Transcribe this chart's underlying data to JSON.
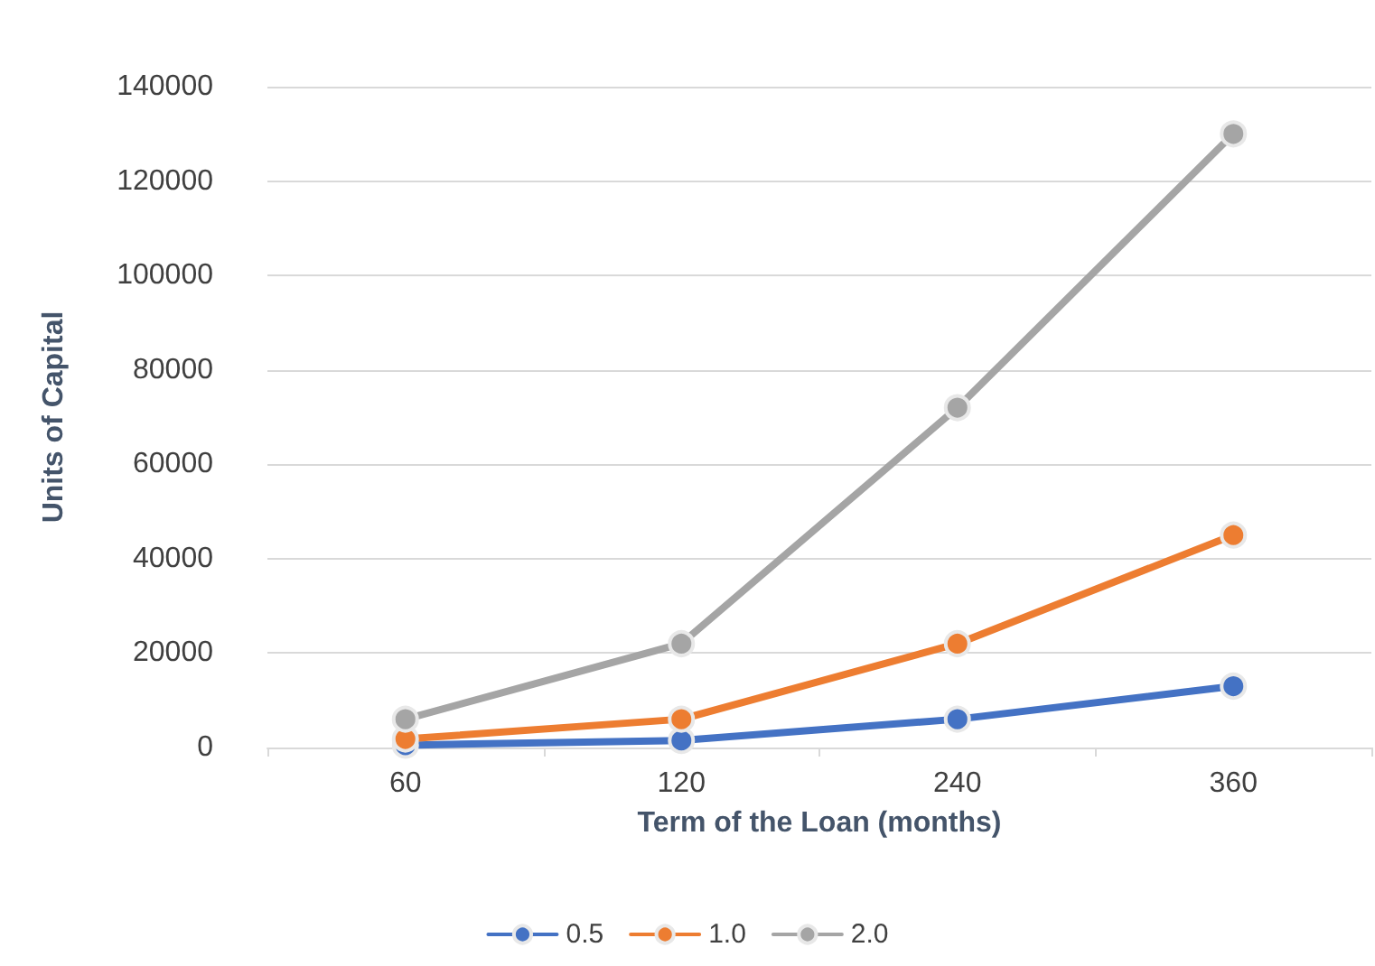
{
  "chart_data": {
    "type": "line",
    "xlabel": "Term of the Loan (months)",
    "ylabel": "Units of Capital",
    "categories": [
      "60",
      "120",
      "240",
      "360"
    ],
    "series": [
      {
        "name": "0.5",
        "color": "#4472c4",
        "values": [
          500,
          1500,
          6000,
          13000
        ]
      },
      {
        "name": "1.0",
        "color": "#ed7d31",
        "values": [
          1800,
          6000,
          22000,
          45000
        ]
      },
      {
        "name": "2.0",
        "color": "#a5a5a5",
        "values": [
          6000,
          22000,
          72000,
          130000
        ]
      }
    ],
    "ylim": [
      0,
      140000
    ],
    "yticks": [
      0,
      20000,
      40000,
      60000,
      80000,
      100000,
      120000,
      140000
    ],
    "grid": "y",
    "legend": "bottom",
    "marker": "circle",
    "line_style": "solid"
  }
}
